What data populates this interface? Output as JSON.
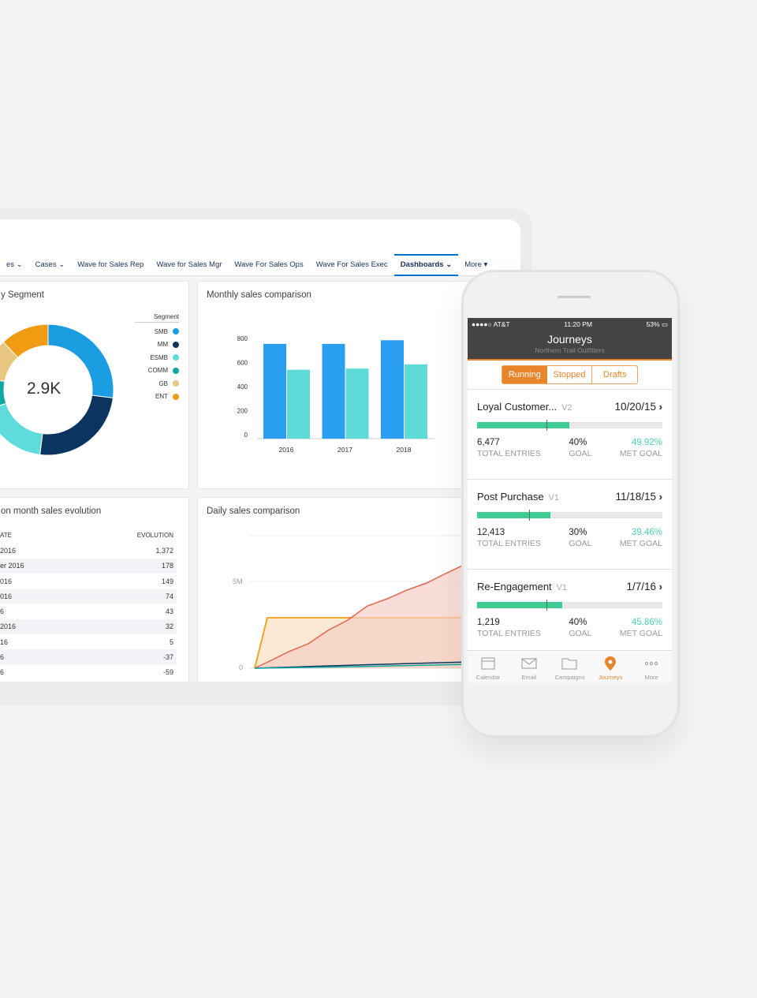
{
  "nav": {
    "tabs": [
      {
        "label": "es"
      },
      {
        "label": "Cases"
      },
      {
        "label": "Wave for Sales Rep"
      },
      {
        "label": "Wave for Sales Mgr"
      },
      {
        "label": "Wave For Sales Ops"
      },
      {
        "label": "Wave For Sales Exec"
      },
      {
        "label": "Dashboards",
        "active": true
      },
      {
        "label": "More"
      }
    ]
  },
  "donut": {
    "title": "y Segment",
    "center": "2.9K",
    "legend_title": "Segment",
    "segments": [
      {
        "name": "SMB",
        "color": "#1b9de2",
        "share": 0.27
      },
      {
        "name": "MM",
        "color": "#0b3560",
        "share": 0.25
      },
      {
        "name": "ESMB",
        "color": "#5fdbdc",
        "share": 0.18
      },
      {
        "name": "COMM",
        "color": "#10a8a0",
        "share": 0.08
      },
      {
        "name": "GB",
        "color": "#e8c880",
        "share": 0.1
      },
      {
        "name": "ENT",
        "color": "#f09b12",
        "share": 0.12
      }
    ]
  },
  "chart_data": {
    "type": "bar",
    "title": "Monthly sales comparison",
    "categories": [
      "2016",
      "2017",
      "2018"
    ],
    "series": [
      {
        "values": [
          755,
          755,
          785
        ],
        "color": "#2a9ef0"
      },
      {
        "values": [
          540,
          550,
          585
        ],
        "color": "#5edbd9"
      }
    ],
    "yticks": [
      0,
      200,
      400,
      600,
      800
    ],
    "ylim": [
      0,
      800
    ]
  },
  "table": {
    "title": "on month sales evolution",
    "headers": [
      "ATE",
      "EVOLUTION"
    ],
    "rows": [
      [
        "2016",
        "1,372"
      ],
      [
        "er 2016",
        "178"
      ],
      [
        "016",
        "149"
      ],
      [
        "016",
        "74"
      ],
      [
        "6",
        "43"
      ],
      [
        " 2016",
        "32"
      ],
      [
        "16",
        "5"
      ],
      [
        "6",
        "-37"
      ],
      [
        "6",
        "-59"
      ]
    ]
  },
  "daily": {
    "title": "Daily sales comparison",
    "yticks": [
      "5M",
      "0"
    ]
  },
  "phone": {
    "carrier": "●●●●○ AT&T",
    "time": "11:20 PM",
    "battery": "53%",
    "title": "Journeys",
    "subtitle": "Northern Trail Outfitters",
    "segments": [
      "Running",
      "Stopped",
      "Drafts"
    ],
    "journeys": [
      {
        "name": "Loyal Customer...",
        "version": "V2",
        "date": "10/20/15",
        "entries": "6,477",
        "goal": "40%",
        "met": "49.92%",
        "progress": 0.4992,
        "goal_frac": 0.4
      },
      {
        "name": "Post Purchase",
        "version": "V1",
        "date": "11/18/15",
        "entries": "12,413",
        "goal": "30%",
        "met": "39.46%",
        "progress": 0.3946,
        "goal_frac": 0.3
      },
      {
        "name": "Re-Engagement",
        "version": "V1",
        "date": "1/7/16",
        "entries": "1,219",
        "goal": "40%",
        "met": "45.86%",
        "progress": 0.4586,
        "goal_frac": 0.4
      }
    ],
    "labels": {
      "entries": "TOTAL ENTRIES",
      "goal": "GOAL",
      "met": "MET GOAL"
    },
    "tabbar": [
      {
        "label": "Calendar",
        "icon": "calendar-icon"
      },
      {
        "label": "Email",
        "icon": "email-icon"
      },
      {
        "label": "Campaigns",
        "icon": "folder-icon"
      },
      {
        "label": "Journeys",
        "icon": "location-pin-icon",
        "active": true
      },
      {
        "label": "More",
        "icon": "more-icon"
      }
    ]
  },
  "colors": {
    "accent": "#e8852b",
    "progress": "#3dcc91",
    "tab_active": "#0070d2"
  }
}
